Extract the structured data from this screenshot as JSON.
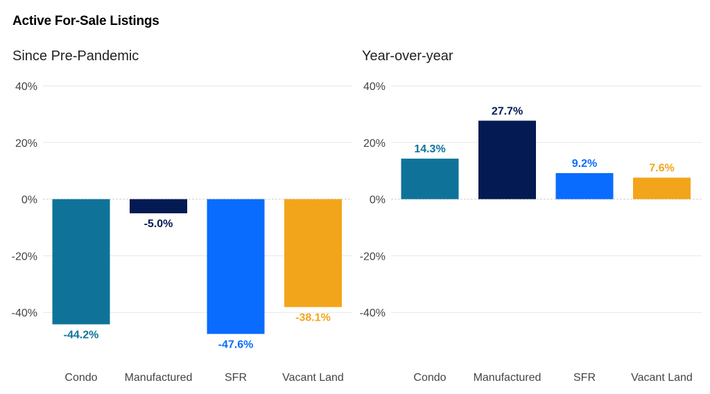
{
  "title": "Active For-Sale Listings",
  "colors": {
    "Condo": "#0f7399",
    "Manufactured": "#041a52",
    "SFR": "#0a6cff",
    "Vacant Land": "#f2a51a",
    "grid": "#e6e6e6",
    "zero": "#cfcfcf"
  },
  "chart_data": [
    {
      "type": "bar",
      "title": "Since Pre-Pandemic",
      "categories": [
        "Condo",
        "Manufactured",
        "SFR",
        "Vacant Land"
      ],
      "values": [
        -44.2,
        -5.0,
        -47.6,
        -38.1
      ],
      "value_labels": [
        "-44.2%",
        "-5.0%",
        "-47.6%",
        "-38.1%"
      ],
      "ylim": [
        -60,
        40
      ],
      "yticks": [
        40,
        20,
        0,
        -20,
        -40
      ],
      "ytick_labels": [
        "40%",
        "20%",
        "0%",
        "-20%",
        "-40%"
      ],
      "grid": true,
      "xlabel": "",
      "ylabel": ""
    },
    {
      "type": "bar",
      "title": "Year-over-year",
      "categories": [
        "Condo",
        "Manufactured",
        "SFR",
        "Vacant Land"
      ],
      "values": [
        14.3,
        27.7,
        9.2,
        7.6
      ],
      "value_labels": [
        "14.3%",
        "27.7%",
        "9.2%",
        "7.6%"
      ],
      "ylim": [
        -60,
        40
      ],
      "yticks": [
        40,
        20,
        0,
        -20,
        -40
      ],
      "ytick_labels": [
        "40%",
        "20%",
        "0%",
        "-20%",
        "-40%"
      ],
      "grid": true,
      "xlabel": "",
      "ylabel": ""
    }
  ]
}
